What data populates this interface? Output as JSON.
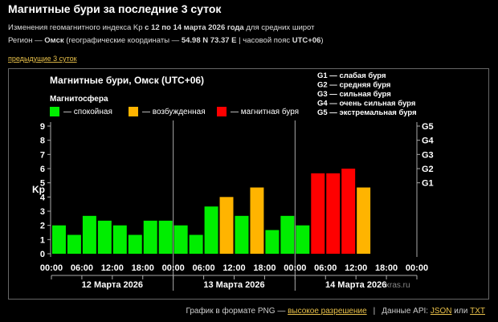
{
  "header": {
    "title": "Магнитные бури за последние 3 суток",
    "subtitle": [
      "Изменения геомагнитного индекса Kp ",
      "с 12 по 14 марта 2026 года",
      " для средних широт"
    ],
    "region": [
      "Регион — ",
      "Омск",
      " (географические координаты — ",
      "54.98 N 73.37 E",
      " | часовой пояс ",
      "UTC+06",
      ")"
    ],
    "prev_link": "предыдущие 3 суток"
  },
  "chart_data": {
    "type": "bar",
    "title": "Магнитные бури, Омск (UTC+06)",
    "legend_title": "Магнитосфера",
    "legend": [
      {
        "name": "— спокойная",
        "color": "#00ee00"
      },
      {
        "name": "— возбужденная",
        "color": "#ffb400"
      },
      {
        "name": "— магнитная буря",
        "color": "#ff0000"
      }
    ],
    "storm_scale": [
      "G1 — слабая буря",
      "G2 — средняя буря",
      "G3 — сильная буря",
      "G4 — очень сильная буря",
      "G5 — экстремальная буря"
    ],
    "ylabel": "Kp",
    "values": [
      2.0,
      1.33,
      2.67,
      2.33,
      2.0,
      1.33,
      2.33,
      2.33,
      2.0,
      1.33,
      3.33,
      4.0,
      2.67,
      4.67,
      1.67,
      2.67,
      2.0,
      5.67,
      5.67,
      6.0,
      4.67,
      null,
      null,
      null
    ],
    "colors": [
      "#00ee00",
      "#00ee00",
      "#00ee00",
      "#00ee00",
      "#00ee00",
      "#00ee00",
      "#00ee00",
      "#00ee00",
      "#00ee00",
      "#00ee00",
      "#00ee00",
      "#ffb400",
      "#00ee00",
      "#ffb400",
      "#00ee00",
      "#00ee00",
      "#00ee00",
      "#ff0000",
      "#ff0000",
      "#ff0000",
      "#ffb400",
      null,
      null,
      null
    ],
    "ylim": [
      0,
      9
    ],
    "yticks": [
      0,
      1,
      2,
      3,
      4,
      5,
      6,
      7,
      8,
      9
    ],
    "y2lim": [
      0,
      9
    ],
    "y2ticks": [
      {
        "value": 5,
        "label": "G1"
      },
      {
        "value": 6,
        "label": "G2"
      },
      {
        "value": 7,
        "label": "G3"
      },
      {
        "value": 8,
        "label": "G4"
      },
      {
        "value": 9,
        "label": "G5"
      }
    ],
    "xticks": [
      "00:00",
      "06:00",
      "12:00",
      "18:00",
      "00:00",
      "06:00",
      "12:00",
      "18:00",
      "00:00",
      "06:00",
      "12:00",
      "18:00",
      "00:00"
    ],
    "days": [
      "12 Марта 2026",
      "13 Марта 2026",
      "14 Марта 2026"
    ],
    "watermark": "xras.ru"
  },
  "footer": {
    "text": "График в формате PNG — ",
    "link": "высокое разрешение",
    "api": "Данные API: ",
    "json": "JSON",
    "or": " или ",
    "txt": "TXT"
  }
}
